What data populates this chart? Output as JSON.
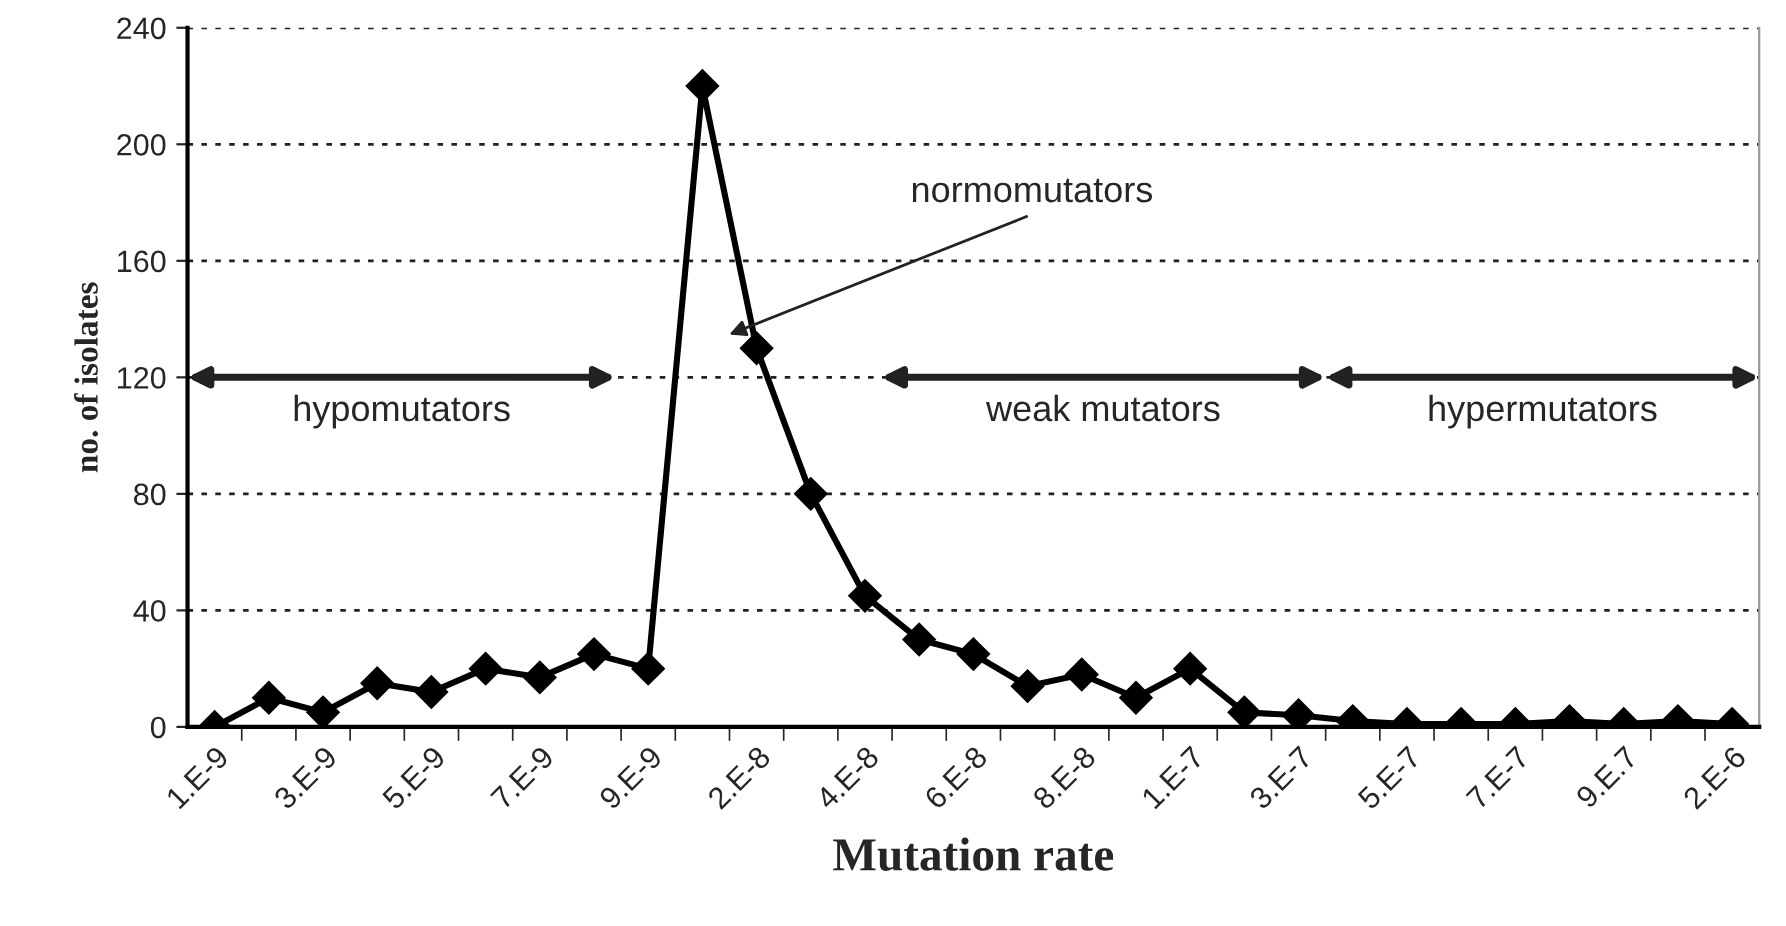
{
  "chart_data": {
    "type": "line",
    "xlabel": "Mutation rate",
    "ylabel": "no. of isolates",
    "categories": [
      "1.E-9",
      null,
      "3.E-9",
      null,
      "5.E-9",
      null,
      "7.E-9",
      null,
      "9.E-9",
      null,
      "2.E-8",
      null,
      "4.E-8",
      null,
      "6.E-8",
      null,
      "8.E-8",
      null,
      "1.E-7",
      null,
      "3.E-7",
      null,
      "5.E-7",
      null,
      "7.E-7",
      null,
      "9.E.7",
      null,
      "2.E-6"
    ],
    "series": [
      {
        "color": "#000000",
        "values": [
          0,
          10,
          5,
          15,
          12,
          20,
          17,
          25,
          20,
          220,
          130,
          80,
          45,
          30,
          25,
          14,
          18,
          10,
          20,
          5,
          4,
          2,
          1,
          1,
          1,
          2,
          1,
          2,
          1
        ]
      }
    ],
    "ylim": [
      0,
      240
    ],
    "yticks": [
      0,
      40,
      80,
      120,
      160,
      200,
      240
    ],
    "grid": "y",
    "marker": "diamond",
    "line_style": "solid",
    "annotations": [
      "hypomutators",
      "weak mutators",
      "hypermutators",
      "normomutators"
    ]
  }
}
